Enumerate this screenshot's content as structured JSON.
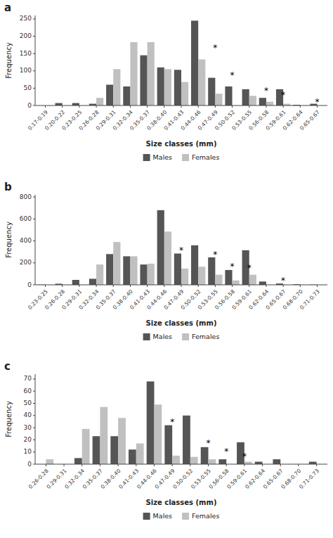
{
  "chart_data": [
    {
      "type": "bar",
      "title": "a",
      "categories": [
        "0.17-0.19",
        "0.20-0.22",
        "0.23-0.25",
        "0.26-0.28",
        "0.29-0.31",
        "0.32-0.34",
        "0.35-0.37",
        "0.38-0.40",
        "0.41-0.43",
        "0.44-0.46",
        "0.47-0.49",
        "0.50-0.52",
        "0.53-0.55",
        "0.56-0.58",
        "0.59-0.61",
        "0.62-0.64",
        "0.65-0.67"
      ],
      "series": [
        {
          "name": "Males",
          "color": "#555555",
          "values": [
            0,
            7,
            7,
            5,
            60,
            55,
            145,
            110,
            103,
            245,
            80,
            55,
            47,
            22,
            47,
            2,
            5
          ]
        },
        {
          "name": "Females",
          "color": "#c0c0c0",
          "values": [
            0,
            0,
            0,
            22,
            105,
            183,
            183,
            105,
            68,
            133,
            34,
            0,
            28,
            11,
            5,
            0,
            0
          ]
        }
      ],
      "annotations": [
        {
          "text": "*",
          "category": "0.47-0.49",
          "y": 165
        },
        {
          "text": "*",
          "category": "0.50-0.52",
          "y": 85
        },
        {
          "text": "*",
          "category": "0.56-0.58",
          "y": 40
        },
        {
          "text": "*",
          "category": "0.59-0.61",
          "y": 28
        },
        {
          "text": "*",
          "category": "0.65-0.67",
          "y": 8
        }
      ],
      "ylim": [
        0,
        260
      ],
      "yticks": [
        0,
        50,
        100,
        150,
        200,
        250
      ],
      "ylabel": "Frequency",
      "xlabel": "Size classes (mm)",
      "grid": false,
      "legend": "bottom"
    },
    {
      "type": "bar",
      "title": "b",
      "categories": [
        "0.23-0.25",
        "0.26-0.28",
        "0.29-0.31",
        "0.32-0.34",
        "0.35-0.37",
        "0.38-0.40",
        "0.41-0.43",
        "0.44-0.46",
        "0.47-0.49",
        "0.50-0.52",
        "0.53-0.55",
        "0.56-0.58",
        "0.59-0.61",
        "0.62-0.64",
        "0.65-0.67",
        "0.68-0.70",
        "0.71-0.73"
      ],
      "series": [
        {
          "name": "Males",
          "color": "#555555",
          "values": [
            2,
            10,
            45,
            55,
            280,
            260,
            185,
            680,
            285,
            360,
            250,
            135,
            315,
            30,
            12,
            5,
            2
          ]
        },
        {
          "name": "Females",
          "color": "#c0c0c0",
          "values": [
            0,
            2,
            0,
            185,
            390,
            260,
            193,
            485,
            148,
            165,
            92,
            40,
            92,
            0,
            0,
            0,
            0
          ]
        }
      ],
      "annotations": [
        {
          "text": "*",
          "category": "0.47-0.49",
          "y": 308
        },
        {
          "text": "*",
          "category": "0.53-0.55",
          "y": 272
        },
        {
          "text": "*",
          "category": "0.56-0.58",
          "y": 162
        },
        {
          "text": "*",
          "category": "0.59-0.61",
          "y": 145
        },
        {
          "text": "*",
          "category": "0.65-0.67",
          "y": 35
        }
      ],
      "ylim": [
        0,
        820
      ],
      "yticks": [
        0,
        200,
        400,
        600,
        800
      ],
      "ylabel": "Frequency",
      "xlabel": "Size classes (mm)",
      "grid": false,
      "legend": "bottom"
    },
    {
      "type": "bar",
      "title": "c",
      "categories": [
        "0.26-0.28",
        "0.29-0.31",
        "0.32-0.34",
        "0.35-0.37",
        "0.38-0.40",
        "0.41-0.43",
        "0.44-0.46",
        "0.47-0.49",
        "0.50-0.52",
        "0.53-0.55",
        "0.56-0.58",
        "0.59-0.61",
        "0.62-0.64",
        "0.65-0.67",
        "0.68-0.70",
        "0.71-0.73"
      ],
      "series": [
        {
          "name": "Males",
          "color": "#555555",
          "values": [
            0,
            0,
            5,
            23,
            23,
            12,
            68,
            32,
            40,
            14,
            4,
            18,
            2,
            4,
            0,
            2
          ]
        },
        {
          "name": "Females",
          "color": "#c0c0c0",
          "values": [
            4,
            0,
            29,
            47,
            38,
            17,
            49,
            7,
            6,
            4,
            0,
            2,
            0,
            0,
            0,
            0
          ]
        }
      ],
      "annotations": [
        {
          "text": "*",
          "category": "0.47-0.49",
          "y": 34
        },
        {
          "text": "*",
          "category": "0.53-0.55",
          "y": 17
        },
        {
          "text": "*",
          "category": "0.56-0.58",
          "y": 10
        },
        {
          "text": "*",
          "category": "0.59-0.61",
          "y": 6
        }
      ],
      "ylim": [
        0,
        74
      ],
      "yticks": [
        0,
        10,
        20,
        30,
        40,
        50,
        60,
        70
      ],
      "ylabel": "Frequency",
      "xlabel": "Size classes (mm)",
      "grid": false,
      "legend": "bottom"
    }
  ]
}
